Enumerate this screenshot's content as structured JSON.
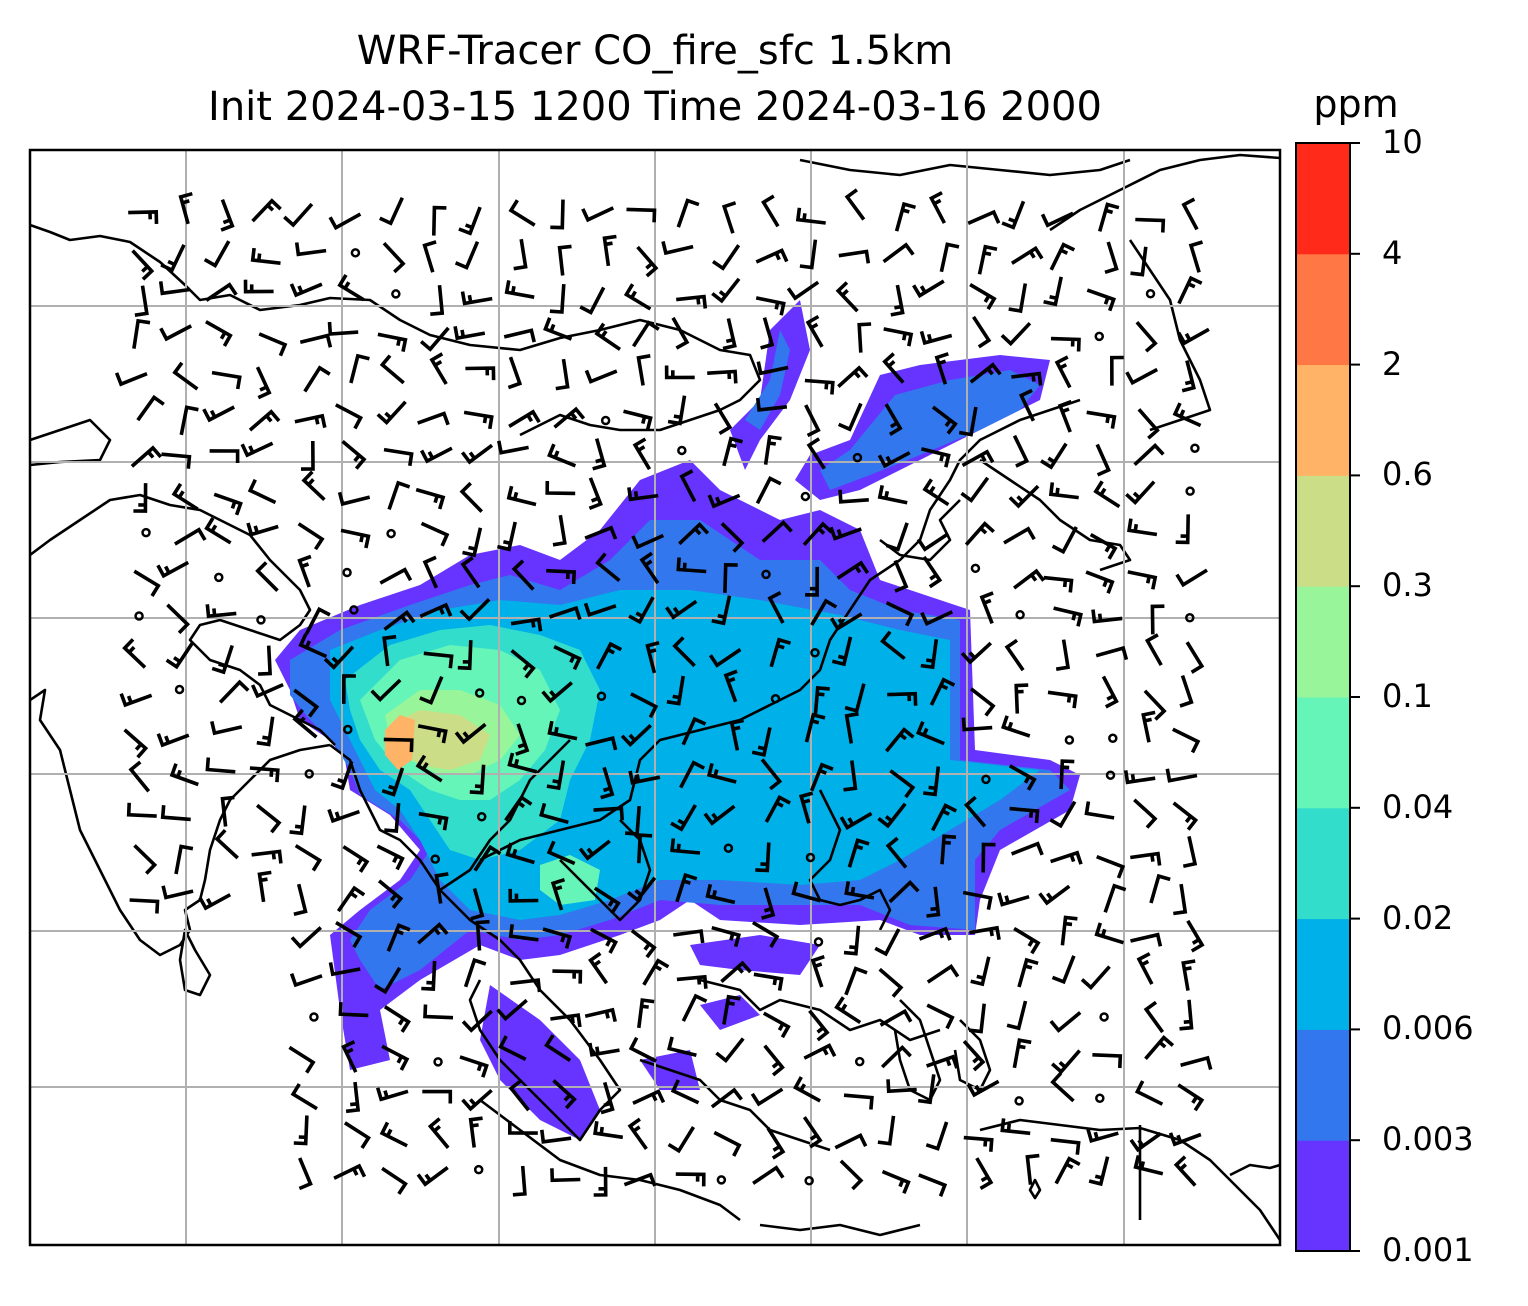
{
  "title": {
    "line1": "WRF-Tracer CO_fire_sfc 1.5km",
    "line2": "Init 2024-03-15 1200 Time 2024-03-16 2000"
  },
  "colorbar": {
    "unit": "ppm",
    "bounds": [
      "0.001",
      "0.003",
      "0.006",
      "0.02",
      "0.04",
      "0.1",
      "0.3",
      "0.6",
      "2",
      "4",
      "10"
    ],
    "colors": [
      "#6633ff",
      "#3377ee",
      "#00b0e8",
      "#33ddcc",
      "#66f5b8",
      "#99f599",
      "#ccdd88",
      "#ffb366",
      "#ff7744",
      "#ff2a1a"
    ]
  },
  "map": {
    "coastline_color": "#000000",
    "grid_color": "#b0b0b0",
    "barb_color": "#000000"
  }
}
